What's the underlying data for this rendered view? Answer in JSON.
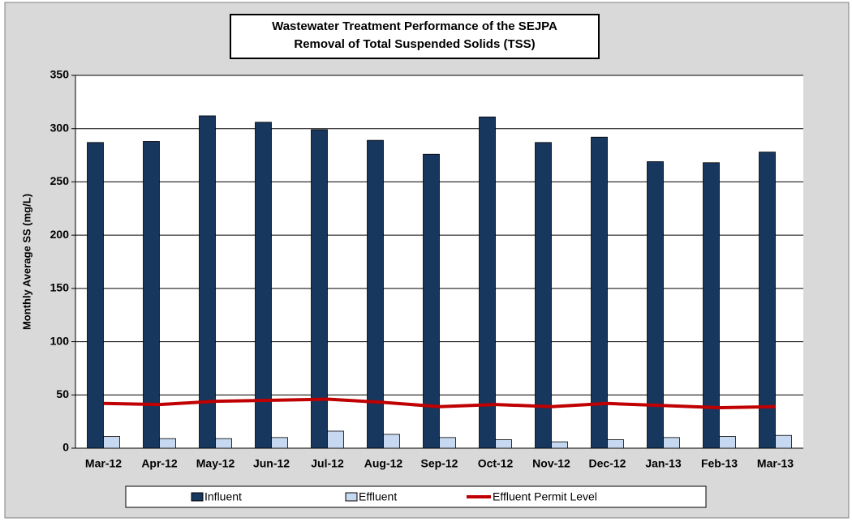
{
  "chart_data": {
    "type": "bar",
    "title": [
      "Wastewater Treatment Performance of the SEJPA",
      "Removal of Total Suspended Solids (TSS)"
    ],
    "y_label": "Monthly Average SS (mg/L)",
    "categories": [
      "Mar-12",
      "Apr-12",
      "May-12",
      "Jun-12",
      "Jul-12",
      "Aug-12",
      "Sep-12",
      "Oct-12",
      "Nov-12",
      "Dec-12",
      "Jan-13",
      "Feb-13",
      "Mar-13"
    ],
    "series": [
      {
        "name": "Influent",
        "type": "bar",
        "color": "#17375e",
        "values": [
          287,
          288,
          312,
          306,
          299,
          289,
          276,
          311,
          287,
          292,
          269,
          268,
          278
        ]
      },
      {
        "name": "Effluent",
        "type": "bar",
        "color": "#c6d9f1",
        "values": [
          11,
          9,
          9,
          10,
          16,
          13,
          10,
          8,
          6,
          8,
          10,
          11,
          12
        ]
      },
      {
        "name": "Effluent Permit Level",
        "type": "line",
        "color": "#c00000",
        "values": [
          42,
          41,
          44,
          45,
          46,
          43,
          39,
          41,
          39,
          42,
          40,
          38,
          39
        ]
      }
    ],
    "ylim": [
      0,
      350
    ],
    "yticks": [
      0,
      50,
      100,
      150,
      200,
      250,
      300,
      350
    ],
    "grid": true,
    "legend": "bottom"
  }
}
